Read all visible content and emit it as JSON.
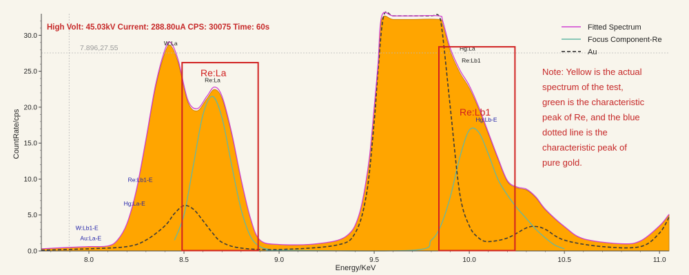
{
  "header": {
    "info": "High Volt: 45.03kV  Current: 288.80uA  CPS: 30075  Time: 60s"
  },
  "cursor_readout": "7.896,27.55",
  "note": {
    "lines": [
      "Note: Yellow is the actual",
      "spectrum of the test,",
      "green is the characteristic",
      "peak of Re, and the blue",
      "dotted line is the",
      "characteristic peak of",
      "pure gold."
    ]
  },
  "boxes": {
    "left_label": "Re:La",
    "right_label": "Re:Lb1"
  },
  "colors": {
    "fill": "#ffa500",
    "fill_edge": "#c07800",
    "fitted": "#d040d0",
    "focus": "#62b8a4",
    "au": "#3a3a3a",
    "box": "#d02020",
    "peak_label_blue": "#2020a8",
    "note_red": "#c62828"
  },
  "chart_data": {
    "type": "area",
    "xlabel": "Energy/KeV",
    "ylabel": "CountRate/cps",
    "xlim": [
      7.75,
      11.05
    ],
    "ylim": [
      0,
      33
    ],
    "xticks": [
      8.0,
      8.5,
      9.0,
      9.5,
      10.0,
      10.5,
      11.0
    ],
    "xtick_labels": [
      "8.0",
      "8.5",
      "9.0",
      "9.5",
      "10.0",
      "10.5",
      "11.0"
    ],
    "yticks": [
      0,
      5,
      10,
      15,
      20,
      25,
      30
    ],
    "ytick_labels": [
      "0.0",
      "5.0",
      "10.0",
      "15.0",
      "20.0",
      "25.0",
      "30.0"
    ],
    "legend": {
      "position": "top-right",
      "entries": [
        "Fitted Spectrum",
        "Focus Component-Re",
        "Au"
      ]
    },
    "series": [
      {
        "name": "Fitted Spectrum",
        "x": [
          7.75,
          7.9,
          8.0,
          8.1,
          8.15,
          8.2,
          8.25,
          8.3,
          8.35,
          8.4,
          8.43,
          8.47,
          8.52,
          8.57,
          8.62,
          8.66,
          8.7,
          8.75,
          8.8,
          8.85,
          8.9,
          9.0,
          9.2,
          9.35,
          9.42,
          9.47,
          9.5,
          9.52,
          9.54,
          9.6,
          9.7,
          9.84,
          9.86,
          9.9,
          9.95,
          10.0,
          10.05,
          10.1,
          10.15,
          10.2,
          10.25,
          10.3,
          10.35,
          10.4,
          10.5,
          10.6,
          10.8,
          10.9,
          11.0,
          11.05
        ],
        "y": [
          0.3,
          0.5,
          0.6,
          0.7,
          1.5,
          3.8,
          8.5,
          15.5,
          23.0,
          28.0,
          29.0,
          26.5,
          21.0,
          19.8,
          21.5,
          22.8,
          21.5,
          16.5,
          10.0,
          4.5,
          1.5,
          0.9,
          1.0,
          2.0,
          5.0,
          12.0,
          20.0,
          26.0,
          32.7,
          32.7,
          32.7,
          32.7,
          32.0,
          28.2,
          25.2,
          23.0,
          20.0,
          16.5,
          13.0,
          9.8,
          8.9,
          8.6,
          7.5,
          5.8,
          3.4,
          1.7,
          1.0,
          1.4,
          3.5,
          5.1
        ]
      },
      {
        "name": "Focus Component-Re",
        "x": [
          8.45,
          8.5,
          8.55,
          8.6,
          8.65,
          8.7,
          8.75,
          8.8,
          8.85,
          8.9,
          8.95,
          9.0,
          9.7,
          9.8,
          9.85,
          9.9,
          9.95,
          10.0,
          10.05,
          10.1,
          10.15,
          10.2,
          10.25,
          10.3,
          10.35,
          10.4,
          10.45,
          10.5
        ],
        "y": [
          1.5,
          5.0,
          12.0,
          19.0,
          21.5,
          18.5,
          12.0,
          5.8,
          2.0,
          0.6,
          0.2,
          0.1,
          0.1,
          1.5,
          3.5,
          7.5,
          13.0,
          16.8,
          16.5,
          13.5,
          10.0,
          7.8,
          6.0,
          4.5,
          3.0,
          1.8,
          0.8,
          0.3
        ]
      },
      {
        "name": "Au",
        "x": [
          7.75,
          8.0,
          8.2,
          8.3,
          8.4,
          8.45,
          8.5,
          8.55,
          8.6,
          8.65,
          8.7,
          8.8,
          9.0,
          9.3,
          9.4,
          9.46,
          9.5,
          9.52,
          9.55,
          9.6,
          9.7,
          9.8,
          9.84,
          9.86,
          9.9,
          9.95,
          10.0,
          10.05,
          10.1,
          10.2,
          10.3,
          10.35,
          10.4,
          10.5,
          10.7,
          10.9,
          11.0,
          11.05
        ],
        "y": [
          0.1,
          0.3,
          0.6,
          1.5,
          3.5,
          5.2,
          6.3,
          5.8,
          4.2,
          2.5,
          1.2,
          0.4,
          0.2,
          0.8,
          2.5,
          8.0,
          18.0,
          25.0,
          32.7,
          32.7,
          32.7,
          32.7,
          32.7,
          30.0,
          20.0,
          8.0,
          3.5,
          1.8,
          1.3,
          1.8,
          3.2,
          3.4,
          3.0,
          1.5,
          0.6,
          0.6,
          2.5,
          4.7
        ]
      }
    ],
    "peak_labels": [
      {
        "text": "W:La",
        "x": 8.43,
        "y": 28.6,
        "color": "dark"
      },
      {
        "text": "Re:La",
        "x": 8.65,
        "y": 23.5,
        "color": "dark"
      },
      {
        "text": "Hg:La",
        "x": 9.99,
        "y": 27.9,
        "color": "dark"
      },
      {
        "text": "Re:Lb1",
        "x": 10.01,
        "y": 26.2,
        "color": "dark"
      },
      {
        "text": "Hg:Lb-E",
        "x": 10.09,
        "y": 18.0,
        "color": "blue"
      },
      {
        "text": "Re:Lb1-E",
        "x": 8.27,
        "y": 9.6,
        "color": "blue"
      },
      {
        "text": "Hg:La-E",
        "x": 8.24,
        "y": 6.3,
        "color": "blue"
      },
      {
        "text": "W:Lb1-E",
        "x": 7.99,
        "y": 2.9,
        "color": "blue"
      },
      {
        "text": "Au:La-E",
        "x": 8.01,
        "y": 1.5,
        "color": "blue"
      }
    ],
    "cursor": {
      "x": 7.896,
      "y": 27.55
    },
    "highlight_boxes": [
      {
        "label": "Re:La",
        "x0": 8.49,
        "x1": 8.89,
        "y0": 0.05,
        "y1": 26.2
      },
      {
        "label": "Re:Lb1",
        "x0": 9.84,
        "x1": 10.24,
        "y0": 0.05,
        "y1": 28.4
      }
    ]
  }
}
